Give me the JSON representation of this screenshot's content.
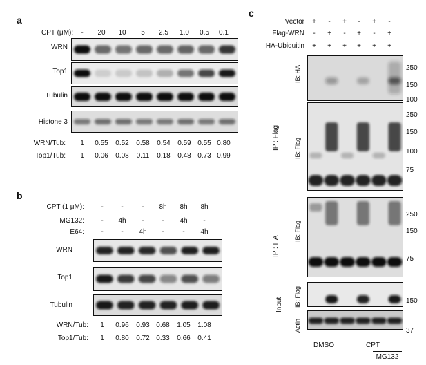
{
  "panelA": {
    "label": "a",
    "cpt_header": "CPT (μM):",
    "lanes": [
      "-",
      "20",
      "10",
      "5",
      "2.5",
      "1.0",
      "0.5",
      "0.1"
    ],
    "blots": [
      "WRN",
      "Top1",
      "Tubulin",
      "Histone 3"
    ],
    "ratio_rows": [
      {
        "label": "WRN/Tub:",
        "values": [
          "1",
          "0.55",
          "0.52",
          "0.58",
          "0.54",
          "0.59",
          "0.55",
          "0.80"
        ]
      },
      {
        "label": "Top1/Tub:",
        "values": [
          "1",
          "0.06",
          "0.08",
          "0.11",
          "0.18",
          "0.48",
          "0.73",
          "0.99"
        ]
      }
    ]
  },
  "panelB": {
    "label": "b",
    "treatments": [
      {
        "label": "CPT (1 μM):",
        "values": [
          "-",
          "-",
          "-",
          "8h",
          "8h",
          "8h"
        ]
      },
      {
        "label": "MG132:",
        "values": [
          "-",
          "4h",
          "-",
          "-",
          "4h",
          "-"
        ]
      },
      {
        "label": "E64:",
        "values": [
          "-",
          "-",
          "4h",
          "-",
          "-",
          "4h"
        ]
      }
    ],
    "blots": [
      "WRN",
      "Top1",
      "Tubulin"
    ],
    "ratio_rows": [
      {
        "label": "WRN/Tub:",
        "values": [
          "1",
          "0.96",
          "0.93",
          "0.68",
          "1.05",
          "1.08"
        ]
      },
      {
        "label": "Top1/Tub:",
        "values": [
          "1",
          "0.80",
          "0.72",
          "0.33",
          "0.66",
          "0.41"
        ]
      }
    ]
  },
  "panelC": {
    "label": "c",
    "rows": [
      {
        "label": "Vector",
        "values": [
          "+",
          "-",
          "+",
          "-",
          "+",
          "-"
        ]
      },
      {
        "label": "Flag-WRN",
        "values": [
          "-",
          "+",
          "-",
          "+",
          "-",
          "+"
        ]
      },
      {
        "label": "HA-Ubiquitin",
        "values": [
          "+",
          "+",
          "+",
          "+",
          "+",
          "+"
        ]
      }
    ],
    "ip_flag": "IP : Flag",
    "ip_ha": "IP : HA",
    "input": "Input",
    "ib_ha": "IB: HA",
    "ib_flag": "IB: Flag",
    "actin": "Actin",
    "markers_ibha": [
      "250",
      "150",
      "100"
    ],
    "markers_ibflag": [
      "250",
      "150",
      "100",
      "75"
    ],
    "markers_ipha": [
      "250",
      "150",
      "75"
    ],
    "markers_input": [
      "150"
    ],
    "markers_actin": [
      "37"
    ],
    "groups": [
      "DMSO",
      "CPT"
    ],
    "mg132": "MG132"
  }
}
